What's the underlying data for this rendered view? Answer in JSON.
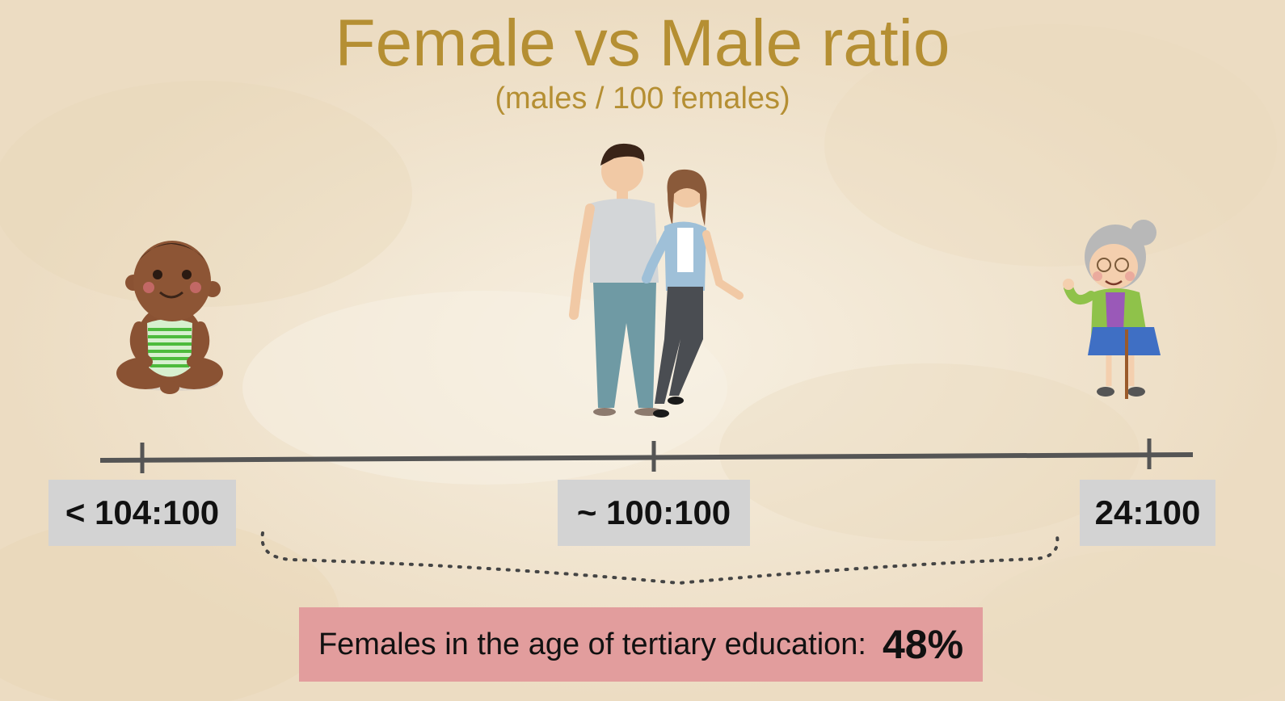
{
  "title": "Female vs Male ratio",
  "subtitle": "(males / 100 females)",
  "stages": [
    {
      "figure": "baby-figure",
      "ratio": "< 104:100"
    },
    {
      "figure": "adult-couple-figure",
      "ratio": "~ 100:100"
    },
    {
      "figure": "grandmother-figure",
      "ratio": "24:100"
    }
  ],
  "info": {
    "text": "Females in the age of tertiary education:",
    "value": "48%"
  },
  "colors": {
    "title": "#b58f33",
    "label_bg": "#d3d3d3",
    "info_bg": "#e29d9d",
    "axis": "#555555"
  }
}
